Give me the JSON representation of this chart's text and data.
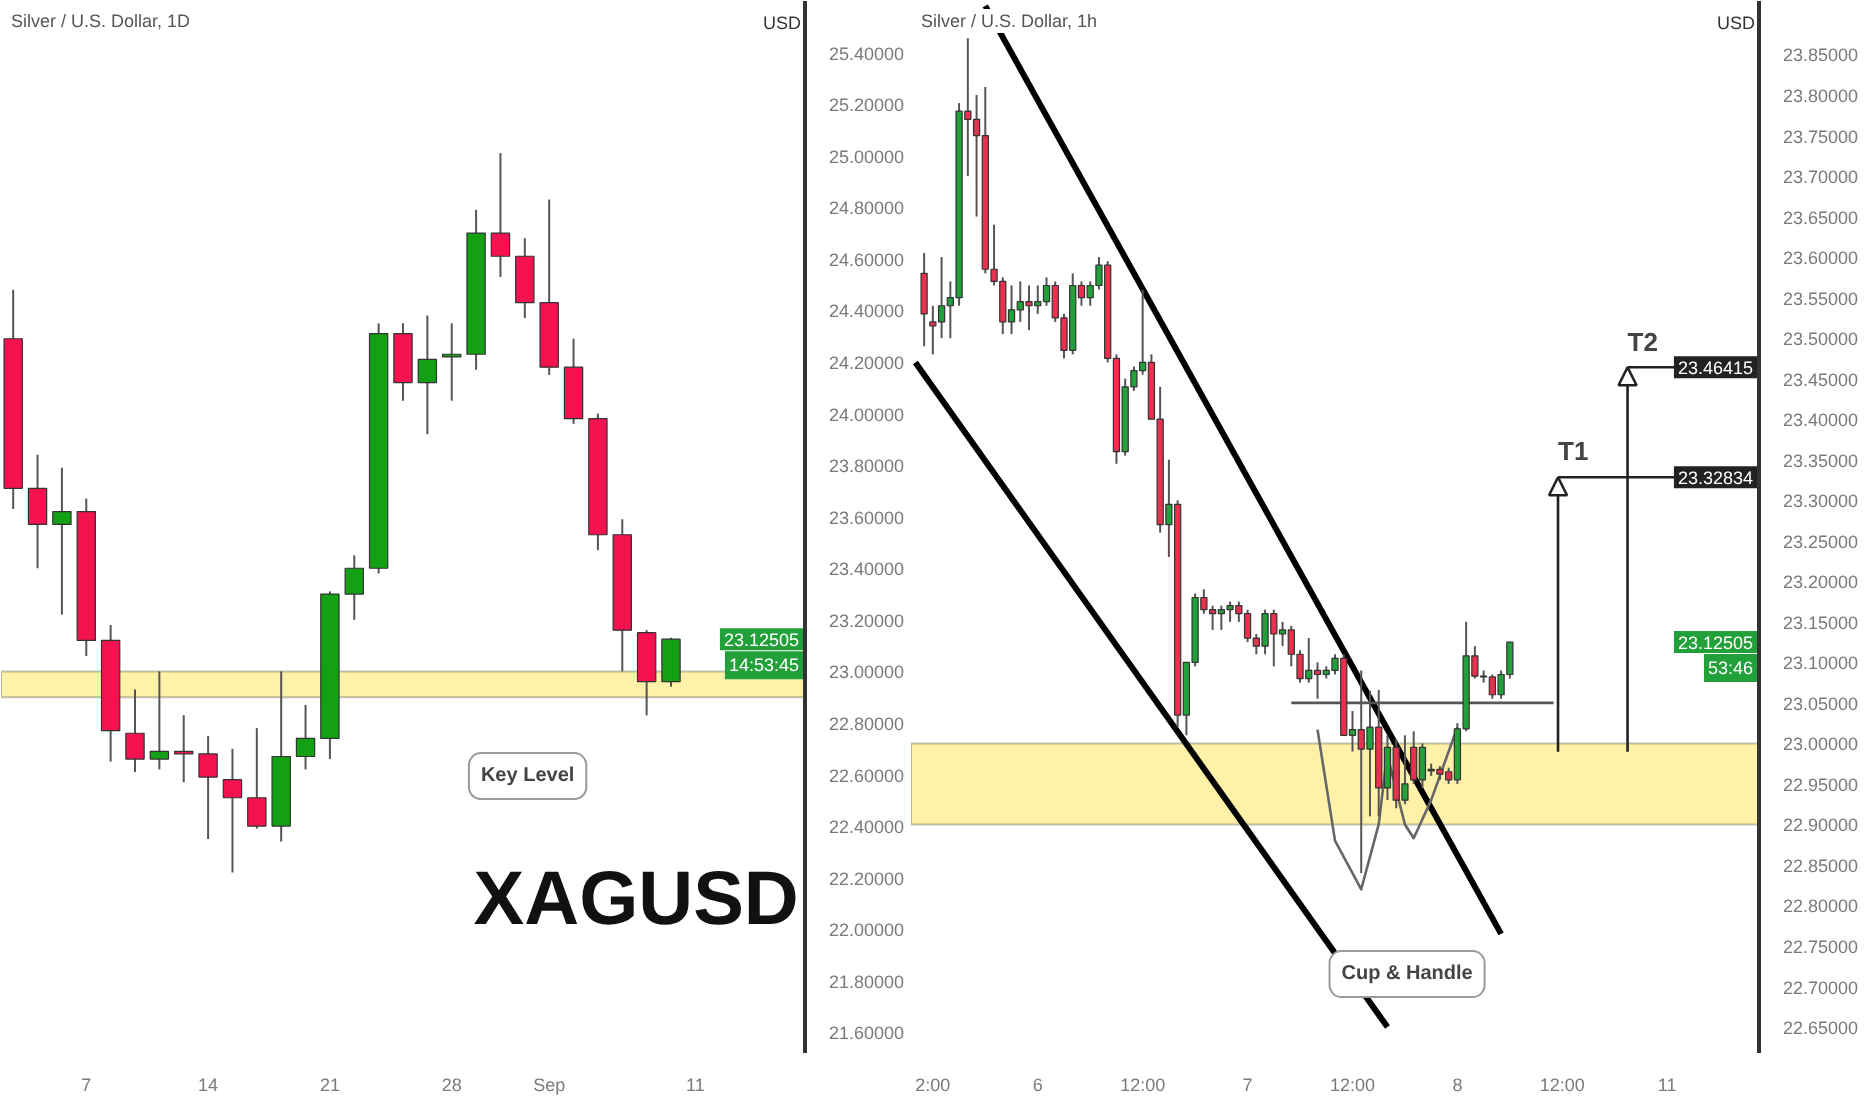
{
  "chart_data": [
    {
      "type": "candlestick",
      "title": "Silver / U.S. Dollar, 1D",
      "ylabel": "USD",
      "categories": [
        null,
        null,
        null,
        "7",
        null,
        null,
        null,
        null,
        "14",
        null,
        null,
        null,
        null,
        "21",
        null,
        null,
        null,
        null,
        "28",
        null,
        null,
        null,
        "Sep",
        null,
        null,
        null,
        null,
        null,
        "11",
        null,
        null,
        null,
        null
      ],
      "ohlc": [
        [
          24.29,
          24.48,
          23.63,
          23.71
        ],
        [
          23.71,
          23.84,
          23.4,
          23.57
        ],
        [
          23.57,
          23.79,
          23.22,
          23.62
        ],
        [
          23.62,
          23.67,
          23.06,
          23.12
        ],
        [
          23.12,
          23.18,
          22.65,
          22.77
        ],
        [
          22.76,
          22.93,
          22.61,
          22.66
        ],
        [
          22.66,
          23.0,
          22.62,
          22.69
        ],
        [
          22.69,
          22.83,
          22.57,
          22.68
        ],
        [
          22.68,
          22.75,
          22.35,
          22.59
        ],
        [
          22.58,
          22.7,
          22.22,
          22.51
        ],
        [
          22.51,
          22.78,
          22.39,
          22.4
        ],
        [
          22.4,
          23.0,
          22.34,
          22.67
        ],
        [
          22.67,
          22.87,
          22.62,
          22.74
        ],
        [
          22.74,
          23.31,
          22.66,
          23.3
        ],
        [
          23.3,
          23.45,
          23.2,
          23.4
        ],
        [
          23.4,
          24.35,
          23.38,
          24.31
        ],
        [
          24.31,
          24.35,
          24.05,
          24.12
        ],
        [
          24.12,
          24.38,
          23.92,
          24.21
        ],
        [
          24.22,
          24.35,
          24.05,
          24.23
        ],
        [
          24.23,
          24.79,
          24.17,
          24.7
        ],
        [
          24.7,
          25.01,
          24.53,
          24.61
        ],
        [
          24.61,
          24.68,
          24.37,
          24.43
        ],
        [
          24.43,
          24.83,
          24.15,
          24.18
        ],
        [
          24.18,
          24.29,
          23.96,
          23.98
        ],
        [
          23.98,
          24.0,
          23.47,
          23.53
        ],
        [
          23.53,
          23.59,
          23.0,
          23.16
        ],
        [
          23.15,
          23.16,
          22.83,
          22.96
        ],
        [
          22.96,
          23.13,
          22.94,
          23.125
        ],
        null,
        null,
        null,
        null,
        null
      ],
      "colors": [
        "#f5134f",
        "#f5134f",
        "#14a014",
        "#f5134f",
        "#f5134f",
        "#f5134f",
        "#14a014",
        "#f5134f",
        "#f5134f",
        "#f5134f",
        "#f5134f",
        "#14a014",
        "#14a014",
        "#14a014",
        "#14a014",
        "#14a014",
        "#f5134f",
        "#14a014",
        "#14a014",
        "#14a014",
        "#f5134f",
        "#f5134f",
        "#f5134f",
        "#f5134f",
        "#f5134f",
        "#f5134f",
        "#f5134f",
        "#14a014",
        null,
        null,
        null,
        null,
        null
      ],
      "ylim": [
        21.52,
        25.6
      ],
      "yticks": [
        {
          "value": 25.4,
          "label": "25.40000"
        },
        {
          "value": 25.2,
          "label": "25.20000"
        },
        {
          "value": 25.0,
          "label": "25.00000"
        },
        {
          "value": 24.8,
          "label": "24.80000"
        },
        {
          "value": 24.6,
          "label": "24.60000"
        },
        {
          "value": 24.4,
          "label": "24.40000"
        },
        {
          "value": 24.2,
          "label": "24.20000"
        },
        {
          "value": 24.0,
          "label": "24.00000"
        },
        {
          "value": 23.8,
          "label": "23.80000"
        },
        {
          "value": 23.6,
          "label": "23.60000"
        },
        {
          "value": 23.4,
          "label": "23.40000"
        },
        {
          "value": 23.2,
          "label": "23.20000"
        },
        {
          "value": 23.0,
          "label": "23.00000"
        },
        {
          "value": 22.8,
          "label": "22.80000"
        },
        {
          "value": 22.6,
          "label": "22.60000"
        },
        {
          "value": 22.4,
          "label": "22.40000"
        },
        {
          "value": 22.2,
          "label": "22.20000"
        },
        {
          "value": 22.0,
          "label": "22.00000"
        },
        {
          "value": 21.8,
          "label": "21.80000"
        },
        {
          "value": 21.6,
          "label": "21.60000"
        }
      ],
      "grid": false,
      "bands": [
        {
          "axis": "y",
          "from": 22.9,
          "to": 23.0,
          "label": "Key Level",
          "color": "#fff1a8"
        }
      ],
      "annotations": [
        "23.12505",
        "14:53:45",
        "XAGUSD"
      ]
    },
    {
      "type": "candlestick",
      "title": "Silver / U.S. Dollar, 1h",
      "ylabel": "USD",
      "categories": [
        null,
        null,
        "2:00",
        null,
        null,
        null,
        null,
        null,
        null,
        null,
        null,
        null,
        null,
        null,
        "6",
        null,
        null,
        null,
        null,
        null,
        null,
        null,
        null,
        null,
        null,
        null,
        "12:00",
        null,
        null,
        null,
        null,
        null,
        null,
        null,
        null,
        null,
        null,
        null,
        "7",
        null,
        null,
        null,
        null,
        null,
        null,
        null,
        null,
        null,
        null,
        null,
        "12:00",
        null,
        null,
        null,
        null,
        null,
        null,
        null,
        null,
        null,
        null,
        null,
        "8",
        null,
        null,
        null,
        null,
        null,
        null,
        null,
        null,
        null,
        null,
        null,
        "12:00",
        null,
        null,
        null,
        null,
        null,
        null,
        null,
        null,
        null,
        null,
        null,
        "11",
        null,
        null,
        null,
        null,
        null,
        null,
        null,
        null,
        null,
        null
      ],
      "ohlc": [
        null,
        [
          23.58,
          23.605,
          23.49,
          23.53
        ],
        [
          23.52,
          23.54,
          23.48,
          23.515
        ],
        [
          23.52,
          23.6,
          23.5,
          23.54
        ],
        [
          23.54,
          23.57,
          23.5,
          23.55
        ],
        [
          23.55,
          23.79,
          23.54,
          23.78
        ],
        [
          23.78,
          23.87,
          23.7,
          23.77
        ],
        [
          23.77,
          23.8,
          23.65,
          23.75
        ],
        [
          23.75,
          23.81,
          23.58,
          23.585
        ],
        [
          23.585,
          23.64,
          23.565,
          23.57
        ],
        [
          23.57,
          23.575,
          23.505,
          23.52
        ],
        [
          23.52,
          23.565,
          23.505,
          23.535
        ],
        [
          23.535,
          23.57,
          23.52,
          23.545
        ],
        [
          23.545,
          23.565,
          23.51,
          23.54
        ],
        [
          23.54,
          23.565,
          23.53,
          23.545
        ],
        [
          23.545,
          23.575,
          23.54,
          23.565
        ],
        [
          23.565,
          23.57,
          23.52,
          23.525
        ],
        [
          23.525,
          23.53,
          23.475,
          23.485
        ],
        [
          23.485,
          23.58,
          23.48,
          23.565
        ],
        [
          23.565,
          23.57,
          23.54,
          23.55
        ],
        [
          23.55,
          23.57,
          23.54,
          23.565
        ],
        [
          23.565,
          23.6,
          23.56,
          23.59
        ],
        [
          23.59,
          23.595,
          23.47,
          23.475
        ],
        [
          23.475,
          23.48,
          23.345,
          23.36
        ],
        [
          23.36,
          23.45,
          23.355,
          23.44
        ],
        [
          23.44,
          23.465,
          23.435,
          23.46
        ],
        [
          23.46,
          23.56,
          23.455,
          23.47
        ],
        [
          23.47,
          23.48,
          23.4,
          23.4
        ],
        [
          23.4,
          23.44,
          23.26,
          23.27
        ],
        [
          23.27,
          23.35,
          23.23,
          23.295
        ],
        [
          23.295,
          23.3,
          23.02,
          23.035
        ],
        [
          23.035,
          23.1,
          23.01,
          23.1
        ],
        [
          23.1,
          23.185,
          23.095,
          23.18
        ],
        [
          23.18,
          23.19,
          23.16,
          23.165
        ],
        [
          23.165,
          23.17,
          23.14,
          23.16
        ],
        [
          23.16,
          23.17,
          23.14,
          23.165
        ],
        [
          23.165,
          23.175,
          23.15,
          23.17
        ],
        [
          23.17,
          23.175,
          23.15,
          23.16
        ],
        [
          23.16,
          23.165,
          23.125,
          23.13
        ],
        [
          23.13,
          23.135,
          23.11,
          23.12
        ],
        [
          23.12,
          23.165,
          23.11,
          23.16
        ],
        [
          23.16,
          23.165,
          23.095,
          23.135
        ],
        [
          23.135,
          23.15,
          23.12,
          23.14
        ],
        [
          23.14,
          23.145,
          23.095,
          23.11
        ],
        [
          23.11,
          23.115,
          23.075,
          23.08
        ],
        [
          23.08,
          23.13,
          23.075,
          23.09
        ],
        [
          23.09,
          23.1,
          23.055,
          23.085
        ],
        [
          23.085,
          23.095,
          23.08,
          23.09
        ],
        [
          23.09,
          23.11,
          23.085,
          23.105
        ],
        [
          23.105,
          23.11,
          23.01,
          23.01
        ],
        [
          23.01,
          23.04,
          22.99,
          23.017
        ],
        [
          23.017,
          23.09,
          22.84,
          22.993
        ],
        [
          22.993,
          23.065,
          22.91,
          23.02
        ],
        [
          23.02,
          23.066,
          22.91,
          22.945
        ],
        [
          22.945,
          23.01,
          22.93,
          22.995
        ],
        [
          22.995,
          23.005,
          22.92,
          22.93
        ],
        [
          22.93,
          23.01,
          22.925,
          22.95
        ],
        [
          22.995,
          23.015,
          22.95,
          22.955
        ],
        [
          22.955,
          23.0,
          22.945,
          22.995
        ],
        [
          22.966,
          22.975,
          22.96,
          22.968
        ],
        [
          22.968,
          22.972,
          22.955,
          22.962
        ],
        [
          22.965,
          22.97,
          22.95,
          22.955
        ],
        [
          22.955,
          23.025,
          22.95,
          23.018
        ],
        [
          23.018,
          23.15,
          23.015,
          23.108
        ],
        [
          23.108,
          23.12,
          23.08,
          23.083
        ],
        [
          23.083,
          23.09,
          23.075,
          23.082
        ],
        [
          23.082,
          23.085,
          23.055,
          23.06
        ],
        [
          23.06,
          23.09,
          23.055,
          23.085
        ],
        [
          23.085,
          23.125,
          23.08,
          23.125
        ],
        null,
        null,
        null,
        null,
        null,
        null,
        null,
        null,
        null,
        null,
        null,
        null,
        null,
        null,
        null,
        null,
        null,
        null,
        null,
        null,
        null,
        null,
        null,
        null,
        null,
        null,
        null,
        null
      ],
      "colors": [
        null,
        "#e8304f",
        "#e8304f",
        "#22a03a",
        "#22a03a",
        "#22a03a",
        "#e8304f",
        "#e8304f",
        "#e8304f",
        "#e8304f",
        "#e8304f",
        "#22a03a",
        "#22a03a",
        "#e8304f",
        "#22a03a",
        "#22a03a",
        "#e8304f",
        "#e8304f",
        "#22a03a",
        "#e8304f",
        "#22a03a",
        "#22a03a",
        "#e8304f",
        "#e8304f",
        "#22a03a",
        "#22a03a",
        "#22a03a",
        "#e8304f",
        "#e8304f",
        "#22a03a",
        "#e8304f",
        "#22a03a",
        "#22a03a",
        "#e8304f",
        "#e8304f",
        "#22a03a",
        "#22a03a",
        "#e8304f",
        "#e8304f",
        "#e8304f",
        "#22a03a",
        "#e8304f",
        "#22a03a",
        "#e8304f",
        "#e8304f",
        "#22a03a",
        "#e8304f",
        "#22a03a",
        "#22a03a",
        "#e8304f",
        "#22a03a",
        "#e8304f",
        "#22a03a",
        "#e8304f",
        "#22a03a",
        "#e8304f",
        "#22a03a",
        "#e8304f",
        "#22a03a",
        "#22a03a",
        "#e8304f",
        "#e8304f",
        "#22a03a",
        "#22a03a",
        "#e8304f",
        "#e8304f",
        "#e8304f",
        "#22a03a",
        "#22a03a",
        null,
        null,
        null,
        null,
        null,
        null,
        null,
        null,
        null,
        null,
        null,
        null,
        null,
        null,
        null,
        null,
        null,
        null,
        null,
        null,
        null,
        null,
        null,
        null,
        null,
        null,
        null,
        null
      ],
      "ylim": [
        22.618,
        23.916
      ],
      "yticks": [
        {
          "value": 23.85,
          "label": "23.85000"
        },
        {
          "value": 23.8,
          "label": "23.80000"
        },
        {
          "value": 23.75,
          "label": "23.75000"
        },
        {
          "value": 23.7,
          "label": "23.70000"
        },
        {
          "value": 23.65,
          "label": "23.65000"
        },
        {
          "value": 23.6,
          "label": "23.60000"
        },
        {
          "value": 23.55,
          "label": "23.55000"
        },
        {
          "value": 23.5,
          "label": "23.50000"
        },
        {
          "value": 23.45,
          "label": "23.45000"
        },
        {
          "value": 23.4,
          "label": "23.40000"
        },
        {
          "value": 23.35,
          "label": "23.35000"
        },
        {
          "value": 23.3,
          "label": "23.30000"
        },
        {
          "value": 23.25,
          "label": "23.25000"
        },
        {
          "value": 23.2,
          "label": "23.20000"
        },
        {
          "value": 23.15,
          "label": "23.15000"
        },
        {
          "value": 23.1,
          "label": "23.10000"
        },
        {
          "value": 23.05,
          "label": "23.05000"
        },
        {
          "value": 23.0,
          "label": "23.00000"
        },
        {
          "value": 22.95,
          "label": "22.95000"
        },
        {
          "value": 22.9,
          "label": "22.90000"
        },
        {
          "value": 22.85,
          "label": "22.85000"
        },
        {
          "value": 22.8,
          "label": "22.80000"
        },
        {
          "value": 22.75,
          "label": "22.75000"
        },
        {
          "value": 22.7,
          "label": "22.70000"
        },
        {
          "value": 22.65,
          "label": "22.65000"
        }
      ],
      "grid": false,
      "bands": [
        {
          "axis": "y",
          "from": 22.9,
          "to": 23.0,
          "color": "#fff1a8"
        }
      ],
      "ref_lines": [
        {
          "axis": "y",
          "value": 23.32834,
          "label": "23.32834",
          "color": "#222222"
        },
        {
          "axis": "y",
          "value": 23.46415,
          "label": "23.46415",
          "color": "#222222"
        }
      ],
      "series": [
        {
          "type": "line",
          "color": "#000000",
          "values": [
            null,
            null,
            null,
            null,
            null,
            null,
            null,
            null,
            23.91,
            null,
            null,
            null,
            null,
            null,
            null,
            null,
            null,
            null,
            null,
            null,
            null,
            null,
            null,
            null,
            null,
            null,
            null,
            null,
            null,
            null,
            null,
            null,
            null,
            null,
            null,
            null,
            null,
            null,
            null,
            null,
            null,
            null,
            null,
            null,
            null,
            null,
            null,
            null,
            null,
            null,
            null,
            null,
            null,
            null,
            null,
            null,
            null,
            null,
            null,
            null,
            null,
            null,
            null,
            null,
            null,
            null,
            null,
            22.765,
            null,
            null,
            null,
            null,
            null,
            null,
            null,
            null,
            null,
            null,
            null,
            null,
            null,
            null,
            null,
            null,
            null,
            null,
            null,
            null,
            null,
            null,
            null,
            null,
            null,
            null,
            null,
            null,
            null
          ]
        },
        {
          "type": "line",
          "color": "#000000",
          "values": [
            23.47,
            null,
            null,
            null,
            null,
            null,
            null,
            null,
            null,
            null,
            null,
            null,
            null,
            null,
            null,
            null,
            null,
            null,
            null,
            null,
            null,
            null,
            null,
            null,
            null,
            null,
            null,
            null,
            null,
            null,
            null,
            null,
            null,
            null,
            null,
            null,
            null,
            null,
            null,
            null,
            null,
            null,
            null,
            null,
            null,
            null,
            null,
            null,
            null,
            null,
            null,
            null,
            null,
            null,
            22.65,
            null,
            null,
            null,
            null,
            null,
            null,
            null,
            null,
            null,
            null,
            null,
            null,
            null,
            null,
            null,
            null,
            null,
            null,
            null,
            null,
            null,
            null,
            null,
            null,
            null,
            null,
            null,
            null,
            null,
            null,
            null,
            null,
            null,
            null,
            null,
            null,
            null,
            null,
            null,
            null,
            null,
            null
          ]
        },
        {
          "type": "line",
          "color": "#555555",
          "values": [
            null,
            null,
            null,
            null,
            null,
            null,
            null,
            null,
            null,
            null,
            null,
            null,
            null,
            null,
            null,
            null,
            null,
            null,
            null,
            null,
            null,
            null,
            null,
            null,
            null,
            null,
            null,
            null,
            null,
            null,
            null,
            null,
            null,
            null,
            null,
            null,
            null,
            null,
            null,
            null,
            null,
            null,
            null,
            23.05,
            null,
            null,
            null,
            null,
            null,
            null,
            null,
            null,
            null,
            null,
            null,
            null,
            null,
            null,
            null,
            null,
            null,
            null,
            null,
            null,
            null,
            null,
            null,
            null,
            null,
            null,
            null,
            null,
            null,
            23.05,
            null,
            null,
            null,
            null,
            null,
            null,
            null,
            null,
            null,
            null,
            null,
            null,
            null,
            null,
            null,
            null,
            null,
            null,
            null,
            null,
            null,
            null,
            null
          ]
        },
        {
          "type": "line",
          "color": "#666666",
          "values": [
            null,
            null,
            null,
            null,
            null,
            null,
            null,
            null,
            null,
            null,
            null,
            null,
            null,
            null,
            null,
            null,
            null,
            null,
            null,
            null,
            null,
            null,
            null,
            null,
            null,
            null,
            null,
            null,
            null,
            null,
            null,
            null,
            null,
            null,
            null,
            null,
            null,
            null,
            null,
            null,
            null,
            null,
            null,
            null,
            null,
            null,
            23.017,
            null,
            22.88,
            null,
            null,
            22.82,
            null,
            22.9,
            22.99,
            null,
            null,
            null,
            null,
            null,
            null,
            null,
            null,
            null,
            null,
            null,
            null,
            null,
            null,
            null,
            null,
            null,
            null,
            null,
            null,
            null,
            null,
            null,
            null,
            null,
            null,
            null,
            null,
            null,
            null,
            null,
            null,
            null,
            null,
            null,
            null,
            null,
            null,
            null,
            null,
            null,
            null
          ]
        },
        {
          "type": "line",
          "color": "#666666",
          "values": [
            null,
            null,
            null,
            null,
            null,
            null,
            null,
            null,
            null,
            null,
            null,
            null,
            null,
            null,
            null,
            null,
            null,
            null,
            null,
            null,
            null,
            null,
            null,
            null,
            null,
            null,
            null,
            null,
            null,
            null,
            null,
            null,
            null,
            null,
            null,
            null,
            null,
            null,
            null,
            null,
            null,
            null,
            null,
            null,
            null,
            null,
            null,
            null,
            null,
            null,
            null,
            null,
            null,
            null,
            22.985,
            null,
            22.9,
            22.883,
            null,
            22.93,
            null,
            null,
            23.02,
            null,
            null,
            null,
            null,
            null,
            null,
            null,
            null,
            null,
            null,
            null,
            null,
            null,
            null,
            null,
            null,
            null,
            null,
            null,
            null,
            null,
            null,
            null,
            null,
            null,
            null,
            null,
            null,
            null,
            null,
            null,
            null,
            null,
            null
          ]
        }
      ],
      "annotations": [
        "T1",
        "T2",
        "23.12505",
        "53:46",
        "Cup & Handle"
      ]
    }
  ]
}
